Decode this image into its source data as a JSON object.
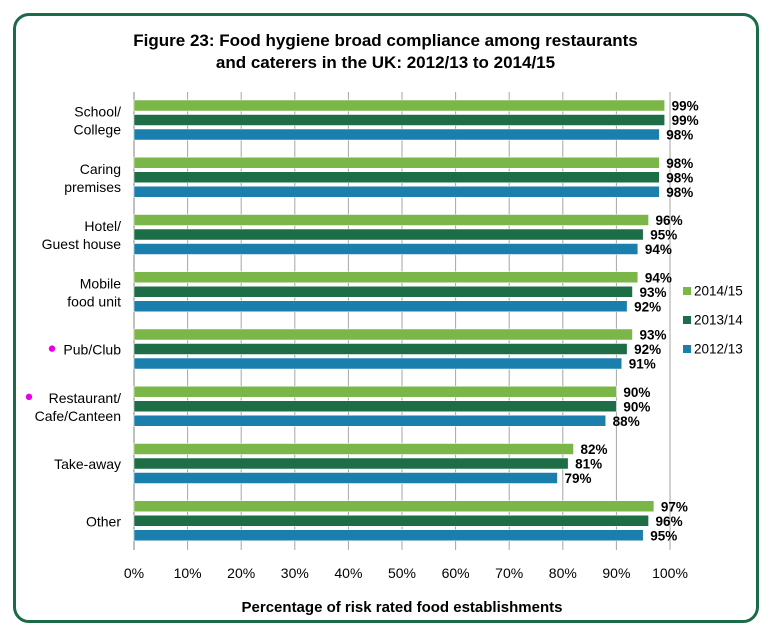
{
  "colors": {
    "frame": "#1b6b48",
    "grid": "#a6a6a6",
    "pink_dot": "#e600e6"
  },
  "chart_data": {
    "type": "bar",
    "orientation": "horizontal",
    "title": [
      "Figure 23: Food hygiene broad compliance among restaurants",
      "and caterers in the UK: 2012/13 to 2014/15"
    ],
    "xlabel": "Percentage of risk rated food establishments",
    "ylabel": "",
    "xlim": [
      0,
      100
    ],
    "xticks": [
      "0%",
      "10%",
      "20%",
      "30%",
      "40%",
      "50%",
      "60%",
      "70%",
      "80%",
      "90%",
      "100%"
    ],
    "legend_position": "right",
    "grid": true,
    "categories": [
      {
        "lines": [
          "School/",
          "College"
        ],
        "marked": false
      },
      {
        "lines": [
          "Caring",
          "premises"
        ],
        "marked": false
      },
      {
        "lines": [
          "Hotel/",
          "Guest house"
        ],
        "marked": false
      },
      {
        "lines": [
          "Mobile",
          "food unit"
        ],
        "marked": false
      },
      {
        "lines": [
          "Pub/Club"
        ],
        "marked": true
      },
      {
        "lines": [
          "Restaurant/",
          "Cafe/Canteen"
        ],
        "marked": true
      },
      {
        "lines": [
          "Take-away"
        ],
        "marked": false
      },
      {
        "lines": [
          "Other"
        ],
        "marked": false
      }
    ],
    "series": [
      {
        "name": "2014/15",
        "color": "#7ab648",
        "values": [
          99,
          98,
          96,
          94,
          93,
          90,
          82,
          97
        ],
        "labels": [
          "99%",
          "98%",
          "96%",
          "94%",
          "93%",
          "90%",
          "82%",
          "97%"
        ]
      },
      {
        "name": "2013/14",
        "color": "#1d6e46",
        "values": [
          99,
          98,
          95,
          93,
          92,
          90,
          81,
          96
        ],
        "labels": [
          "99%",
          "98%",
          "95%",
          "93%",
          "92%",
          "90%",
          "81%",
          "96%"
        ]
      },
      {
        "name": "2012/13",
        "color": "#1a7fad",
        "values": [
          98,
          98,
          94,
          92,
          91,
          88,
          79,
          95
        ],
        "labels": [
          "98%",
          "98%",
          "94%",
          "92%",
          "91%",
          "88%",
          "79%",
          "95%"
        ]
      }
    ]
  }
}
